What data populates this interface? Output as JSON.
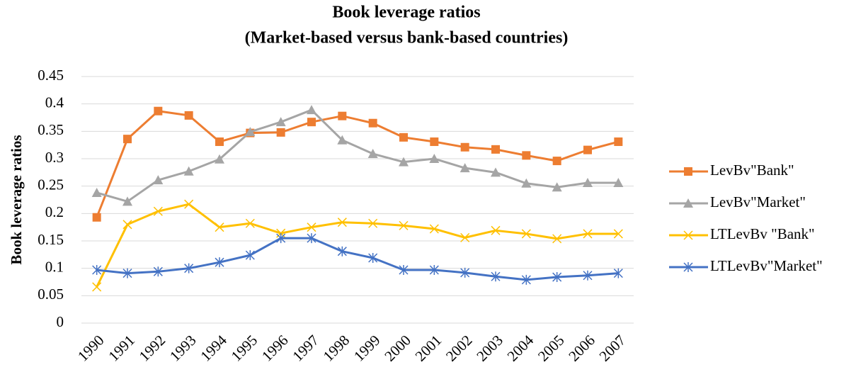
{
  "chart_data": {
    "type": "line",
    "title": "Book leverage ratios",
    "subtitle": "(Market-based versus bank-based countries)",
    "y_label": "Book leverage ratios",
    "categories": [
      "1990",
      "1991",
      "1992",
      "1993",
      "1994",
      "1995",
      "1996",
      "1997",
      "1998",
      "1999",
      "2000",
      "2001",
      "2002",
      "2003",
      "2004",
      "2005",
      "2006",
      "2007"
    ],
    "series": [
      {
        "name": "LevBv\"Bank\"",
        "color": "#ed7d31",
        "marker": "square",
        "values": [
          0.193,
          0.336,
          0.387,
          0.379,
          0.331,
          0.347,
          0.348,
          0.367,
          0.378,
          0.365,
          0.339,
          0.331,
          0.321,
          0.317,
          0.306,
          0.296,
          0.316,
          0.331
        ]
      },
      {
        "name": "LevBv\"Market\"",
        "color": "#a5a5a5",
        "marker": "triangle",
        "values": [
          0.238,
          0.222,
          0.261,
          0.277,
          0.299,
          0.349,
          0.367,
          0.389,
          0.334,
          0.309,
          0.294,
          0.3,
          0.283,
          0.275,
          0.255,
          0.248,
          0.256,
          0.256
        ]
      },
      {
        "name": "LTLevBv \"Bank\"",
        "color": "#ffc000",
        "marker": "x",
        "values": [
          0.066,
          0.18,
          0.204,
          0.217,
          0.175,
          0.182,
          0.164,
          0.175,
          0.184,
          0.182,
          0.178,
          0.172,
          0.156,
          0.169,
          0.163,
          0.154,
          0.163,
          0.163
        ]
      },
      {
        "name": "LTLevBv\"Market\"",
        "color": "#4472c4",
        "marker": "asterisk",
        "values": [
          0.097,
          0.091,
          0.094,
          0.1,
          0.111,
          0.124,
          0.155,
          0.155,
          0.131,
          0.119,
          0.097,
          0.097,
          0.092,
          0.085,
          0.079,
          0.084,
          0.087,
          0.091
        ]
      }
    ],
    "ylim": [
      0,
      0.45
    ],
    "yticks": [
      0,
      0.05,
      0.1,
      0.15,
      0.2,
      0.25,
      0.3,
      0.35,
      0.4,
      0.45
    ],
    "grid": true,
    "legend": "right"
  }
}
